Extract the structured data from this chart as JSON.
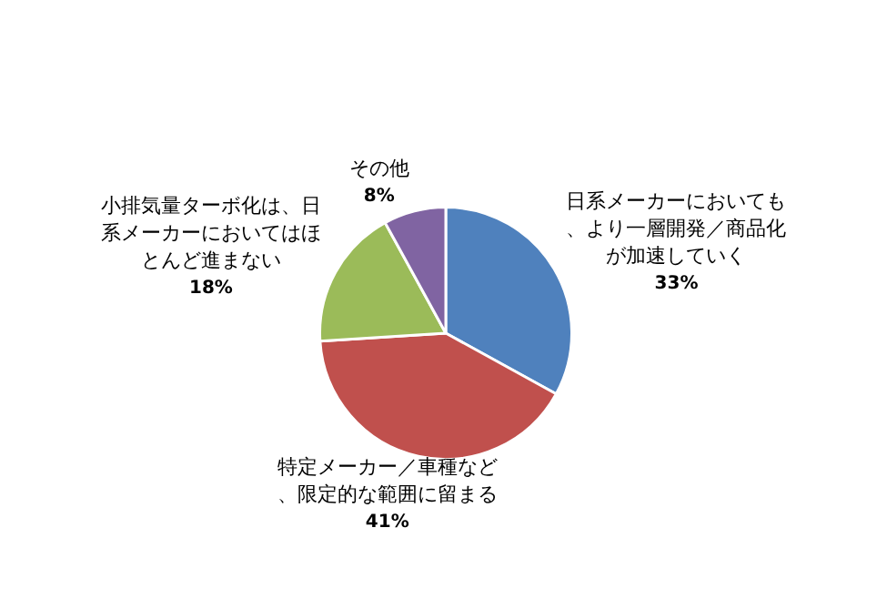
{
  "chart_data": {
    "type": "pie",
    "categories": [
      "日系メーカーにおいても、より一層開発／商品化が加速していく",
      "特定メーカー／車種など、限定的な範囲に留まる",
      "小排気量ターボ化は、日系メーカーにおいてはほとんど進まない",
      "その他"
    ],
    "values": [
      33,
      41,
      18,
      8
    ],
    "value_labels": [
      "33%",
      "41%",
      "18%",
      "8%"
    ],
    "colors": [
      "#4f81bd",
      "#c0504d",
      "#9bbb59",
      "#8064a2"
    ],
    "legend": false
  }
}
